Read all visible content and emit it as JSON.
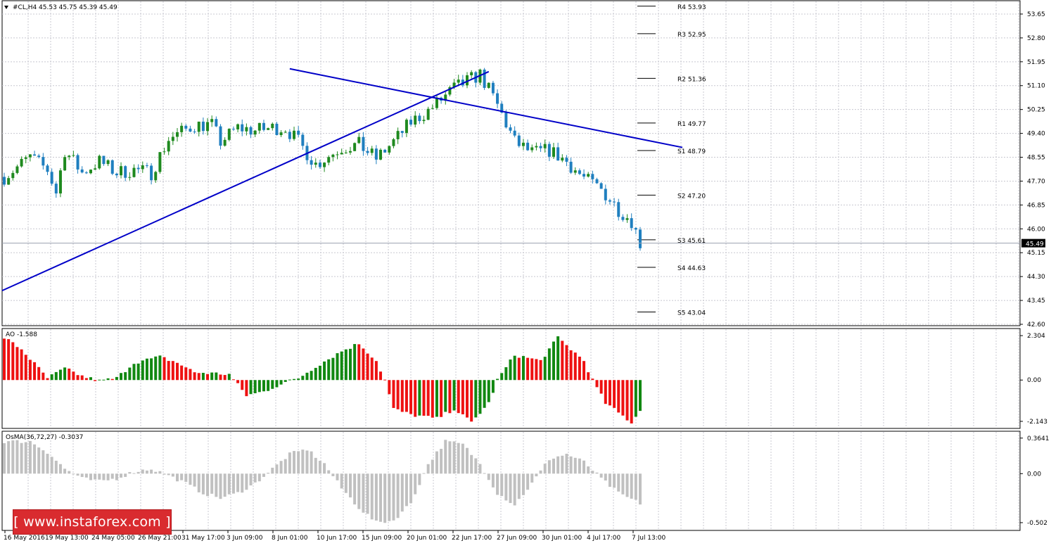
{
  "header": {
    "symbol_label": "#CL,H4",
    "ohlc_label": "45.53 45.75 45.39 45.49",
    "current_price_label": "45.49"
  },
  "colors": {
    "bull": "#1f8a1f",
    "bear": "#1f7fbf",
    "trendline": "#0000c8",
    "ao_up": "#118811",
    "ao_down": "#ee1111",
    "osma": "#c0c0c0",
    "grid": "#c8c8d0",
    "logo_bg": "#d92b2f"
  },
  "watermark": {
    "text": "[ www.instaforex.com ]"
  },
  "chart_data": [
    {
      "type": "candlestick",
      "title": "#CL,H4",
      "ylim": [
        42.6,
        54.1
      ],
      "yticks": [
        "53.65",
        "52.80",
        "51.95",
        "51.10",
        "50.25",
        "49.40",
        "48.55",
        "47.70",
        "46.85",
        "46.00",
        "45.15",
        "44.30",
        "43.45",
        "42.60"
      ],
      "x_labels": [
        "16 May 2016",
        "19 May 13:00",
        "24 May 05:00",
        "26 May 21:00",
        "31 May 17:00",
        "3 Jun 09:00",
        "8 Jun 01:00",
        "10 Jun 17:00",
        "15 Jun 09:00",
        "20 Jun 01:00",
        "22 Jun 17:00",
        "27 Jun 09:00",
        "30 Jun 01:00",
        "4 Jul 17:00",
        "7 Jul 13:00"
      ],
      "bar_count": 148,
      "last_price": 45.49,
      "close_path": [
        [
          0,
          47.85
        ],
        [
          6,
          48.55
        ],
        [
          10,
          48.1
        ],
        [
          12,
          47.3
        ],
        [
          14,
          48.8
        ],
        [
          18,
          48.0
        ],
        [
          22,
          48.4
        ],
        [
          26,
          48.0
        ],
        [
          30,
          48.1
        ],
        [
          34,
          48.0
        ],
        [
          38,
          49.2
        ],
        [
          44,
          49.7
        ],
        [
          48,
          49.7
        ],
        [
          50,
          49.1
        ],
        [
          54,
          49.6
        ],
        [
          58,
          49.5
        ],
        [
          62,
          49.6
        ],
        [
          65,
          49.6
        ],
        [
          68,
          49.1
        ],
        [
          72,
          48.3
        ],
        [
          78,
          48.9
        ],
        [
          82,
          49.0
        ],
        [
          86,
          48.5
        ],
        [
          90,
          49.1
        ],
        [
          94,
          49.8
        ],
        [
          98,
          50.2
        ],
        [
          104,
          51.0
        ],
        [
          110,
          51.5
        ],
        [
          114,
          50.4
        ],
        [
          118,
          49.1
        ],
        [
          122,
          48.7
        ],
        [
          126,
          48.8
        ],
        [
          130,
          48.4
        ],
        [
          134,
          47.8
        ],
        [
          138,
          47.4
        ],
        [
          142,
          46.7
        ],
        [
          145,
          46.3
        ],
        [
          147,
          45.49
        ]
      ],
      "trendlines": [
        {
          "name": "rising support",
          "from": [
            "16 May 2016",
            43.8
          ],
          "to": [
            "~20 Jun",
            51.6
          ]
        },
        {
          "name": "falling resistance",
          "from": [
            "8 Jun 01:00",
            51.7
          ],
          "to": [
            "~7 Jul",
            48.9
          ]
        }
      ],
      "pivot_levels": [
        {
          "label": "R4 53.93",
          "value": 53.93
        },
        {
          "label": "R3 52.95",
          "value": 52.95
        },
        {
          "label": "R2 51.36",
          "value": 51.36
        },
        {
          "label": "R1 49.77",
          "value": 49.77
        },
        {
          "label": "S1 48.79",
          "value": 48.79
        },
        {
          "label": "S2 47.20",
          "value": 47.2
        },
        {
          "label": "S3 45.61",
          "value": 45.61
        },
        {
          "label": "S4 44.63",
          "value": 44.63
        },
        {
          "label": "S5 43.04",
          "value": 43.04
        }
      ]
    },
    {
      "type": "bar",
      "title": "AO -1.588",
      "ylim": [
        -2.4,
        2.6
      ],
      "yticks": [
        "2.304",
        "0.00",
        "-2.143"
      ],
      "value_path": [
        [
          0,
          2.2
        ],
        [
          4,
          1.6
        ],
        [
          8,
          0.6
        ],
        [
          10,
          0.1
        ],
        [
          14,
          0.6
        ],
        [
          18,
          0.2
        ],
        [
          22,
          -0.05
        ],
        [
          26,
          0.1
        ],
        [
          30,
          0.9
        ],
        [
          36,
          1.2
        ],
        [
          40,
          0.9
        ],
        [
          44,
          0.4
        ],
        [
          48,
          0.35
        ],
        [
          52,
          0.3
        ],
        [
          56,
          -0.8
        ],
        [
          60,
          -0.6
        ],
        [
          64,
          -0.2
        ],
        [
          68,
          0.1
        ],
        [
          72,
          0.7
        ],
        [
          78,
          1.5
        ],
        [
          82,
          1.9
        ],
        [
          86,
          1.0
        ],
        [
          88,
          0.0
        ],
        [
          90,
          -1.5
        ],
        [
          94,
          -1.8
        ],
        [
          100,
          -2.0
        ],
        [
          104,
          -1.5
        ],
        [
          108,
          -2.2
        ],
        [
          112,
          -1.2
        ],
        [
          114,
          0.0
        ],
        [
          118,
          1.3
        ],
        [
          124,
          1.0
        ],
        [
          128,
          2.2
        ],
        [
          134,
          1.0
        ],
        [
          136,
          0.0
        ],
        [
          139,
          -1.2
        ],
        [
          142,
          -1.7
        ],
        [
          145,
          -2.2
        ],
        [
          147,
          -1.588
        ]
      ]
    },
    {
      "type": "bar",
      "title": "OsMA(36,72,27) -0.3037",
      "ylim": [
        -0.56,
        0.42
      ],
      "yticks": [
        "0.3641",
        "0.00",
        "-0.502"
      ],
      "value_path": [
        [
          0,
          0.33
        ],
        [
          6,
          0.33
        ],
        [
          10,
          0.22
        ],
        [
          14,
          0.05
        ],
        [
          18,
          -0.05
        ],
        [
          22,
          -0.08
        ],
        [
          26,
          -0.05
        ],
        [
          30,
          0.02
        ],
        [
          34,
          0.05
        ],
        [
          38,
          -0.02
        ],
        [
          42,
          -0.1
        ],
        [
          46,
          -0.2
        ],
        [
          50,
          -0.25
        ],
        [
          54,
          -0.2
        ],
        [
          58,
          -0.1
        ],
        [
          62,
          0.05
        ],
        [
          66,
          0.2
        ],
        [
          70,
          0.25
        ],
        [
          74,
          0.1
        ],
        [
          78,
          -0.15
        ],
        [
          82,
          -0.35
        ],
        [
          86,
          -0.5
        ],
        [
          90,
          -0.48
        ],
        [
          94,
          -0.3
        ],
        [
          98,
          0.1
        ],
        [
          102,
          0.33
        ],
        [
          106,
          0.3
        ],
        [
          110,
          0.1
        ],
        [
          114,
          -0.2
        ],
        [
          118,
          -0.32
        ],
        [
          122,
          -0.1
        ],
        [
          126,
          0.15
        ],
        [
          130,
          0.2
        ],
        [
          134,
          0.12
        ],
        [
          138,
          -0.05
        ],
        [
          142,
          -0.2
        ],
        [
          147,
          -0.3037
        ]
      ]
    }
  ]
}
